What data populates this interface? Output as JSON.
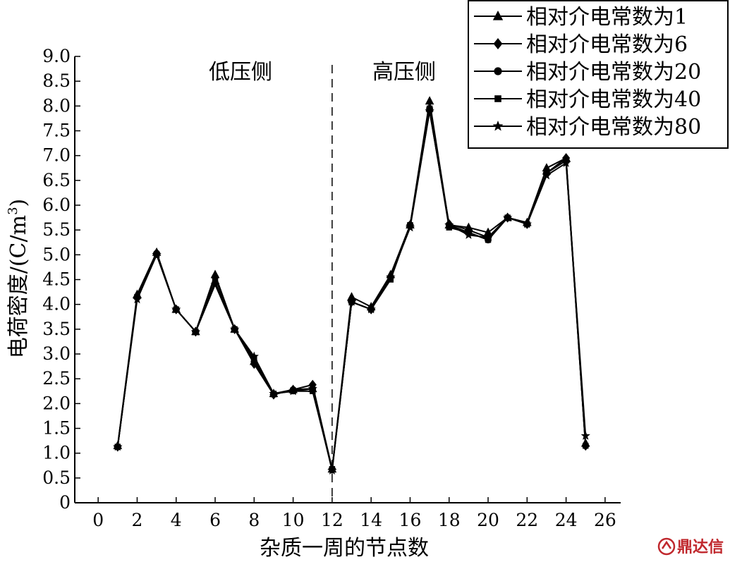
{
  "chart_data": {
    "type": "line",
    "title": "",
    "xlabel": "杂质一周的节点数",
    "ylabel": "电荷密度/(C/m³)",
    "ylabel_parts": {
      "main": "电荷密度/(C/m",
      "sup": "3",
      "close": ")"
    },
    "xlim": [
      -1.2,
      26.8
    ],
    "ylim": [
      0,
      9.0
    ],
    "x_ticks": [
      "0",
      "2",
      "4",
      "6",
      "8",
      "10",
      "12",
      "14",
      "16",
      "18",
      "20",
      "22",
      "24",
      "26"
    ],
    "y_ticks": [
      "0",
      "0.5",
      "1.0",
      "1.5",
      "2.0",
      "2.5",
      "3.0",
      "3.5",
      "4.0",
      "4.5",
      "5.0",
      "5.5",
      "6.0",
      "6.5",
      "7.0",
      "7.5",
      "8.0",
      "8.5",
      "9.0"
    ],
    "divider_x": 12,
    "region_labels": [
      "低压侧",
      "高压侧"
    ],
    "grid": false,
    "legend_position": "top-right",
    "x": [
      1,
      2,
      3,
      4,
      5,
      6,
      7,
      8,
      9,
      10,
      11,
      12,
      13,
      14,
      15,
      16,
      17,
      18,
      19,
      20,
      21,
      22,
      23,
      24,
      25
    ],
    "series": [
      {
        "name": "相对介电常数为1",
        "marker": "triangle",
        "values": [
          1.15,
          4.2,
          5.05,
          3.9,
          3.45,
          4.6,
          3.5,
          2.85,
          2.2,
          2.28,
          2.3,
          0.68,
          4.15,
          3.95,
          4.6,
          5.6,
          8.1,
          5.6,
          5.55,
          5.45,
          5.75,
          5.65,
          6.75,
          6.95,
          1.2
        ]
      },
      {
        "name": "相对介电常数为6",
        "marker": "diamond",
        "values": [
          1.13,
          4.15,
          5.03,
          3.9,
          3.45,
          4.55,
          3.5,
          2.8,
          2.18,
          2.28,
          2.38,
          0.68,
          4.05,
          3.9,
          4.55,
          5.6,
          7.9,
          5.62,
          5.5,
          5.35,
          5.75,
          5.62,
          6.65,
          6.95,
          1.15
        ]
      },
      {
        "name": "相对介电常数为20",
        "marker": "circle",
        "values": [
          1.13,
          4.15,
          5.03,
          3.9,
          3.45,
          4.55,
          3.5,
          2.85,
          2.2,
          2.28,
          2.3,
          0.68,
          4.05,
          3.9,
          4.55,
          5.6,
          7.95,
          5.6,
          5.45,
          5.3,
          5.75,
          5.62,
          6.65,
          6.9,
          1.15
        ]
      },
      {
        "name": "相对介电常数为40",
        "marker": "square",
        "values": [
          1.13,
          4.15,
          5.0,
          3.9,
          3.45,
          4.45,
          3.5,
          2.9,
          2.2,
          2.25,
          2.25,
          0.68,
          4.05,
          3.9,
          4.5,
          5.6,
          7.95,
          5.55,
          5.45,
          5.3,
          5.75,
          5.62,
          6.65,
          6.9,
          1.15
        ]
      },
      {
        "name": "相对介电常数为80",
        "marker": "star",
        "values": [
          1.13,
          4.1,
          5.0,
          3.9,
          3.45,
          4.4,
          3.5,
          2.95,
          2.2,
          2.25,
          2.3,
          0.65,
          4.05,
          3.9,
          4.55,
          5.55,
          7.9,
          5.6,
          5.4,
          5.35,
          5.75,
          5.62,
          6.6,
          6.85,
          1.35
        ]
      }
    ]
  },
  "watermark": {
    "text": "鼎达信",
    "color": "#c0282d"
  }
}
